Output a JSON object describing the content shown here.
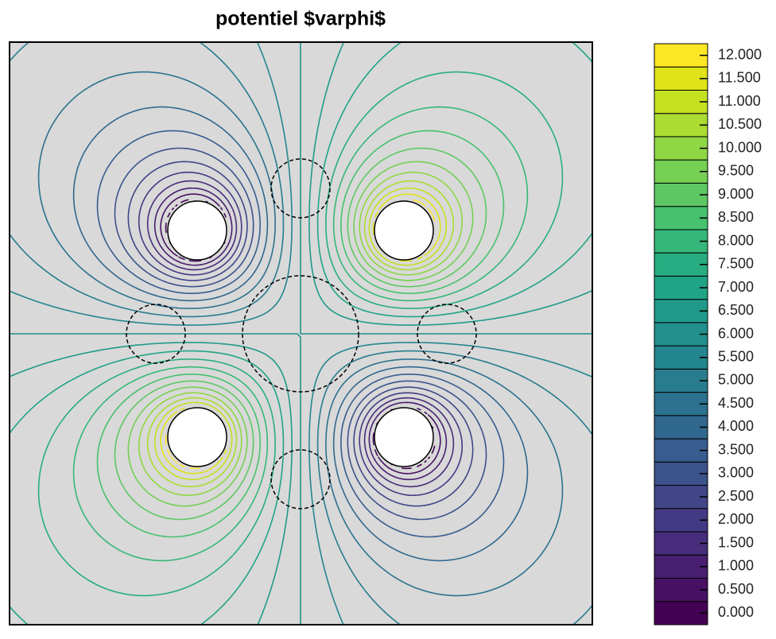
{
  "chart_data": {
    "type": "contour",
    "title": "potentiel $varphi$",
    "levels": [
      {
        "value": 0,
        "label": "0.000"
      },
      {
        "value": 0.5,
        "label": "0.500"
      },
      {
        "value": 1,
        "label": "1.000"
      },
      {
        "value": 1.5,
        "label": "1.500"
      },
      {
        "value": 2,
        "label": "2.000"
      },
      {
        "value": 2.5,
        "label": "2.500"
      },
      {
        "value": 3,
        "label": "3.000"
      },
      {
        "value": 3.5,
        "label": "3.500"
      },
      {
        "value": 4,
        "label": "4.000"
      },
      {
        "value": 4.5,
        "label": "4.500"
      },
      {
        "value": 5,
        "label": "5.000"
      },
      {
        "value": 5.5,
        "label": "5.500"
      },
      {
        "value": 6,
        "label": "6.000"
      },
      {
        "value": 6.5,
        "label": "6.500"
      },
      {
        "value": 7,
        "label": "7.000"
      },
      {
        "value": 7.5,
        "label": "7.500"
      },
      {
        "value": 8,
        "label": "8.000"
      },
      {
        "value": 8.5,
        "label": "8.500"
      },
      {
        "value": 9,
        "label": "9.000"
      },
      {
        "value": 9.5,
        "label": "9.500"
      },
      {
        "value": 10,
        "label": "10.000"
      },
      {
        "value": 10.5,
        "label": "10.500"
      },
      {
        "value": 11,
        "label": "11.000"
      },
      {
        "value": 11.5,
        "label": "11.500"
      },
      {
        "value": 12,
        "label": "12.000"
      }
    ],
    "colors": [
      "#440154",
      "#471164",
      "#481f70",
      "#472d7b",
      "#443a83",
      "#404688",
      "#3b528b",
      "#365d8d",
      "#31688e",
      "#2c728e",
      "#287c8e",
      "#24868e",
      "#21908d",
      "#1f9a8a",
      "#20a486",
      "#27ad81",
      "#35b779",
      "#47c16e",
      "#5dc863",
      "#75d054",
      "#8fd744",
      "#aadc32",
      "#c5e021",
      "#dfe318",
      "#fde725"
    ],
    "background": "#d9d9d9"
  }
}
